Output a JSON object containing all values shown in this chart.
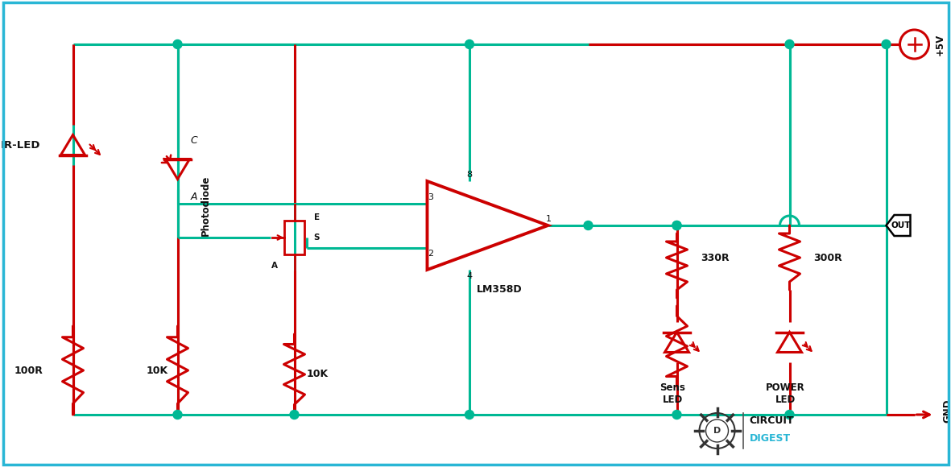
{
  "bg_color": "#ffffff",
  "wire_color": "#00b894",
  "component_color": "#cc0000",
  "text_color": "#111111",
  "node_color": "#00b894",
  "border_color": "#29b6d5",
  "figsize": [
    11.81,
    5.8
  ],
  "dpi": 100,
  "labels": {
    "ir_led": "IR-LED",
    "photodiode": "Photodiode",
    "r1": "100R",
    "r2": "10K",
    "r3": "10K",
    "r4": "330R",
    "r5": "300R",
    "opamp": "LM358D",
    "sens_led": "Sens\nLED",
    "power_led": "POWER\nLED",
    "vcc": "+5V",
    "gnd": "GND",
    "out": "OUT",
    "cd_circuit": "CIRCUIT",
    "cd_digest": "DIGEST"
  },
  "pin_labels": [
    "3",
    "2",
    "1",
    "8",
    "4"
  ],
  "transistor_labels": [
    "E",
    "S",
    "A"
  ],
  "photodiode_labels": [
    "C",
    "A"
  ]
}
